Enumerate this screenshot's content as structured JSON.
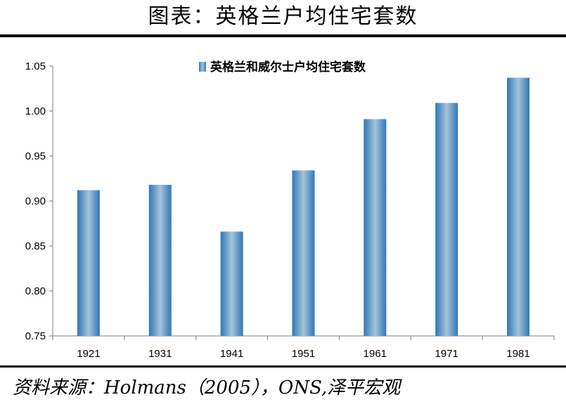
{
  "header": {
    "title": "图表：英格兰户均住宅套数"
  },
  "footer": {
    "source": "资料来源：Holmans（2005），ONS,泽平宏观"
  },
  "colors": {
    "bar_edge": "#2f78b8",
    "bar_center": "#a6c3d8",
    "axis": "#7f7f7f"
  },
  "chart_data": {
    "type": "bar",
    "title": "",
    "xlabel": "",
    "ylabel": "",
    "categories": [
      "1921",
      "1931",
      "1941",
      "1951",
      "1961",
      "1971",
      "1981"
    ],
    "series": [
      {
        "name": "英格兰和威尔士户均住宅套数",
        "values": [
          0.912,
          0.918,
          0.866,
          0.934,
          0.991,
          1.009,
          1.037
        ]
      }
    ],
    "ylim": [
      0.75,
      1.05
    ],
    "yticks": [
      "0.75",
      "0.80",
      "0.85",
      "0.90",
      "0.95",
      "1.00",
      "1.05"
    ],
    "grid": false,
    "legend_position": "top"
  }
}
